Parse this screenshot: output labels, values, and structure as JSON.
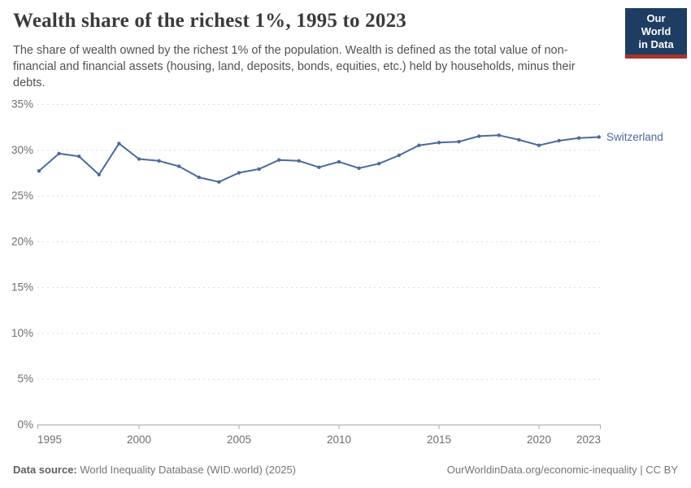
{
  "header": {
    "title": "Wealth share of the richest 1%, 1995 to 2023",
    "subtitle": "The share of wealth owned by the richest 1% of the population. Wealth is defined as the total value of non-financial and financial assets (housing, land, deposits, bonds, equities, etc.) held by households, minus their debts.",
    "logo": {
      "line1": "Our World",
      "line2": "in Data"
    }
  },
  "chart_data": {
    "type": "line",
    "title": "Wealth share of the richest 1%, 1995 to 2023",
    "xlabel": "",
    "ylabel": "",
    "x": [
      1995,
      1996,
      1997,
      1998,
      1999,
      2000,
      2001,
      2002,
      2003,
      2004,
      2005,
      2006,
      2007,
      2008,
      2009,
      2010,
      2011,
      2012,
      2013,
      2014,
      2015,
      2016,
      2017,
      2018,
      2019,
      2020,
      2021,
      2022,
      2023
    ],
    "series": [
      {
        "name": "Switzerland",
        "color": "#4C6A9C",
        "values": [
          27.7,
          29.6,
          29.3,
          27.3,
          30.7,
          29.0,
          28.8,
          28.2,
          27.0,
          26.5,
          27.5,
          27.9,
          28.9,
          28.8,
          28.1,
          28.7,
          28.0,
          28.5,
          29.4,
          30.5,
          30.8,
          30.9,
          31.5,
          31.6,
          31.1,
          30.5,
          31.0,
          31.3,
          31.4
        ]
      }
    ],
    "xlim": [
      1995,
      2023
    ],
    "ylim": [
      0,
      35
    ],
    "y_ticks": [
      0,
      5,
      10,
      15,
      20,
      25,
      30,
      35
    ],
    "y_tick_suffix": "%",
    "x_ticks": [
      1995,
      2000,
      2005,
      2010,
      2015,
      2020,
      2023
    ],
    "grid": "horizontal-dashed",
    "legend_position": "line-end-label"
  },
  "footer": {
    "datasource_label": "Data source:",
    "datasource_value": " World Inequality Database (WID.world) (2025)",
    "right_text": "OurWorldinData.org/economic-inequality | CC BY"
  },
  "colors": {
    "series_blue": "#4C6A9C",
    "logo_navy": "#1d3d63",
    "logo_red": "#a8342a",
    "gridline": "#dcdcdc",
    "axis_text": "#6e6e6e",
    "title_text": "#3a3a3a"
  }
}
